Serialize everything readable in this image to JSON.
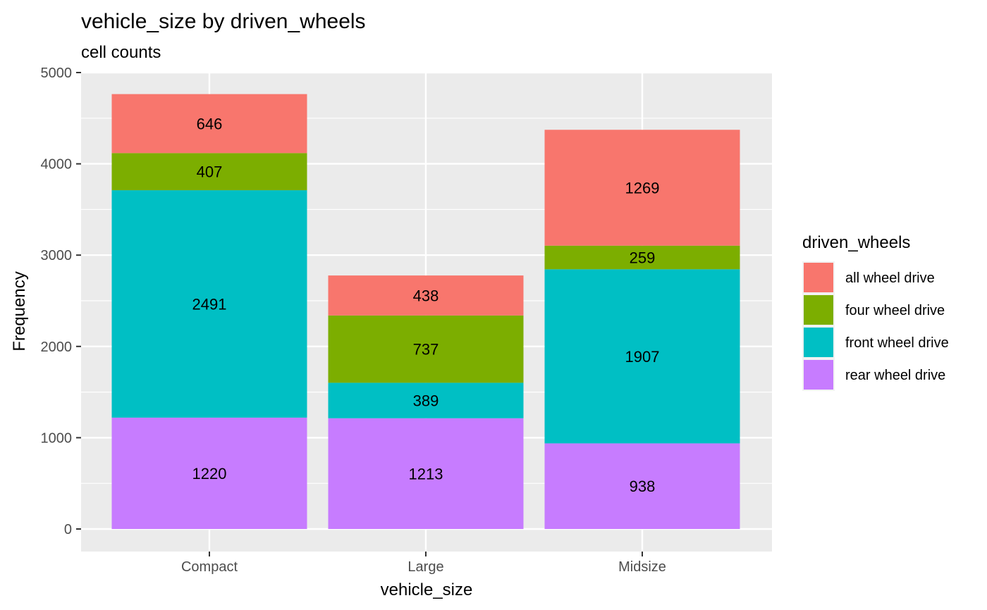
{
  "chart_data": {
    "type": "bar",
    "stacked": true,
    "title": "vehicle_size  by  driven_wheels",
    "subtitle": "cell counts",
    "xlabel": "vehicle_size",
    "ylabel": "Frequency",
    "ylim": [
      0,
      5000
    ],
    "yticks": [
      0,
      1000,
      2000,
      3000,
      4000,
      5000
    ],
    "categories": [
      "Compact",
      "Large",
      "Midsize"
    ],
    "legend_title": "driven_wheels",
    "legend_position": "right",
    "grid": true,
    "series": [
      {
        "name": "rear wheel drive",
        "color": "#C77CFF",
        "values": [
          1220,
          1213,
          938
        ]
      },
      {
        "name": "front wheel drive",
        "color": "#00BFC4",
        "values": [
          2491,
          389,
          1907
        ]
      },
      {
        "name": "four wheel drive",
        "color": "#7CAE00",
        "values": [
          407,
          737,
          259
        ]
      },
      {
        "name": "all wheel drive",
        "color": "#F8766D",
        "values": [
          646,
          438,
          1269
        ]
      }
    ],
    "legend_order": [
      "all wheel drive",
      "four wheel drive",
      "front wheel drive",
      "rear wheel drive"
    ],
    "panel_color": "#EBEBEB",
    "grid_color": "#FFFFFF"
  }
}
